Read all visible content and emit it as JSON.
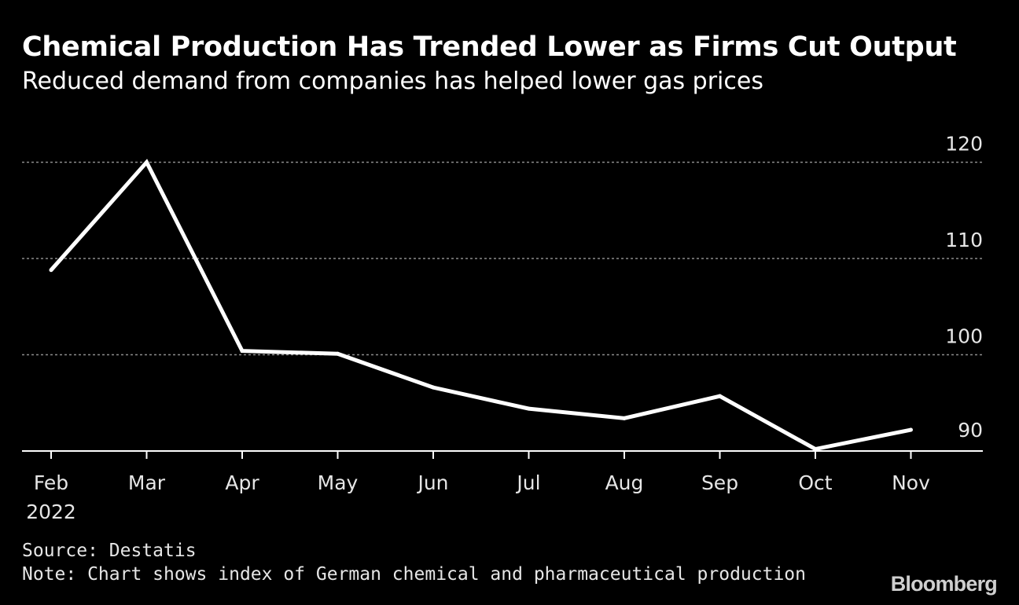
{
  "colors": {
    "background": "#000000",
    "line": "#ffffff",
    "grid": "#8c8c8c",
    "axis": "#ffffff",
    "text": "#ffffff",
    "muted": "#e6e6e6"
  },
  "source": "Source: Destatis",
  "note": "Note: Chart shows index of German chemical and pharmaceutical production",
  "logo": "Bloomberg",
  "chart_data": {
    "type": "line",
    "title": "Chemical Production Has Trended Lower as Firms Cut Output",
    "subtitle": "Reduced demand from companies has helped lower gas prices",
    "xlabel": "",
    "ylabel": "",
    "categories": [
      "Feb",
      "Mar",
      "Apr",
      "May",
      "Jun",
      "Jul",
      "Aug",
      "Sep",
      "Oct",
      "Nov"
    ],
    "year_label": "2022",
    "series": [
      {
        "name": "Chemical and pharmaceutical production index",
        "values": [
          108.8,
          120.0,
          100.4,
          100.1,
          96.6,
          94.4,
          93.4,
          95.7,
          90.2,
          92.2
        ]
      }
    ],
    "yticks": [
      90,
      100,
      110,
      120
    ],
    "ylim": [
      90,
      120
    ],
    "grid": true,
    "y_axis_side": "right"
  }
}
